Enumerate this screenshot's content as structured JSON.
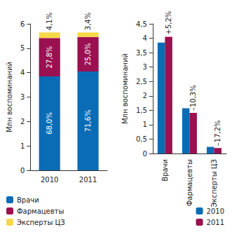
{
  "chart_data": [
    {
      "type": "bar",
      "stacked": true,
      "ylabel": "Млн воспоминаний",
      "categories": [
        "2010",
        "2011"
      ],
      "series": [
        {
          "name": "Врачи",
          "color": "#0b6cb6",
          "values": [
            3.85,
            4.05
          ],
          "labels": [
            "68,0%",
            "71,6%"
          ]
        },
        {
          "name": "Фармацевты",
          "color": "#9a1050",
          "values": [
            1.57,
            1.41
          ],
          "labels": [
            "27,8%",
            "25,0%"
          ]
        },
        {
          "name": "Эксперты ЦЗ",
          "color": "#f6d84a",
          "values": [
            0.23,
            0.19
          ],
          "labels": [
            "4,1%",
            "3,4%"
          ]
        }
      ],
      "ylim": [
        0,
        6
      ],
      "yticks": [
        0,
        1,
        2,
        3,
        4,
        5,
        6
      ],
      "grid": false,
      "legend": "bottom"
    },
    {
      "type": "bar",
      "ylabel": "Млн воспоминаний",
      "categories": [
        "Врачи",
        "Фармацевты",
        "Эксперты ЦЗ"
      ],
      "annotations": [
        "+5,2%",
        "–10,3%",
        "–17,2%"
      ],
      "series": [
        {
          "name": "2010",
          "color": "#0b6cb6",
          "values": [
            3.85,
            1.57,
            0.23
          ]
        },
        {
          "name": "2011",
          "color": "#9a1050",
          "values": [
            4.05,
            1.41,
            0.19
          ]
        }
      ],
      "ylim": [
        0,
        4.5
      ],
      "yticks": [
        0,
        {
          "value": 0.5,
          "label": "0,5"
        },
        1,
        {
          "value": 1.5,
          "label": "1,5"
        },
        2,
        {
          "value": 2.5,
          "label": "2,5"
        },
        3,
        {
          "value": 3.5,
          "label": "3,5"
        },
        4,
        {
          "value": 4.5,
          "label": "4,5"
        }
      ],
      "grid": false,
      "legend": "bottom"
    }
  ]
}
